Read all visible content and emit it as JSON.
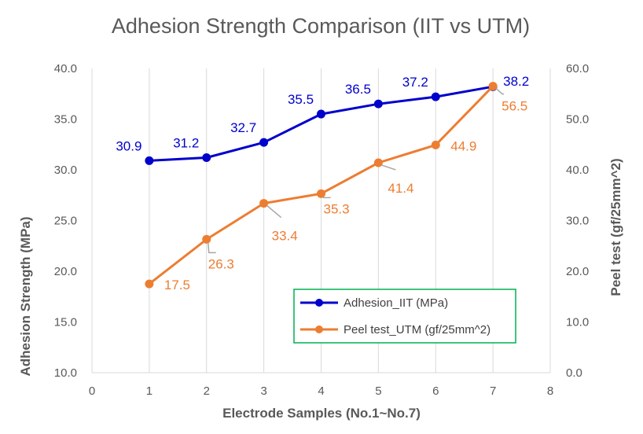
{
  "chart_data": {
    "type": "line",
    "title": "Adhesion Strength Comparison (IIT vs UTM)",
    "xlabel": "Electrode Samples (No.1~No.7)",
    "ylabel": "Adhesion Strength (MPa)",
    "y2label": "Peel test (gf/25mm^2)",
    "xlim": [
      0,
      8
    ],
    "xticks": [
      "0",
      "1",
      "2",
      "3",
      "4",
      "5",
      "6",
      "7",
      "8"
    ],
    "ylim": [
      10,
      40
    ],
    "yticks": [
      "10.0",
      "15.0",
      "20.0",
      "25.0",
      "30.0",
      "35.0",
      "40.0"
    ],
    "y2lim": [
      0,
      60
    ],
    "y2ticks": [
      "0.0",
      "10.0",
      "20.0",
      "30.0",
      "40.0",
      "50.0",
      "60.0"
    ],
    "grid": "vertical",
    "legend_position": "bottom-right",
    "x": [
      1,
      2,
      3,
      4,
      5,
      6,
      7
    ],
    "series": [
      {
        "name": "Adhesion_IIT (MPa)",
        "axis": "left",
        "color": "#0000CC",
        "values": [
          30.9,
          31.2,
          32.7,
          35.5,
          36.5,
          37.2,
          38.2
        ],
        "labels": [
          "30.9",
          "31.2",
          "32.7",
          "35.5",
          "36.5",
          "37.2",
          "38.2"
        ]
      },
      {
        "name": "Peel test_UTM (gf/25mm^2)",
        "axis": "right",
        "color": "#ED7D31",
        "values": [
          17.5,
          26.3,
          33.4,
          35.3,
          41.4,
          44.9,
          56.5
        ],
        "labels": [
          "17.5",
          "26.3",
          "33.4",
          "35.3",
          "41.4",
          "44.9",
          "56.5"
        ]
      }
    ]
  },
  "colors": {
    "grid": "#D9D9D9",
    "text": "#595959",
    "legend_border": "#00B050",
    "leader": "#A6A6A6"
  }
}
